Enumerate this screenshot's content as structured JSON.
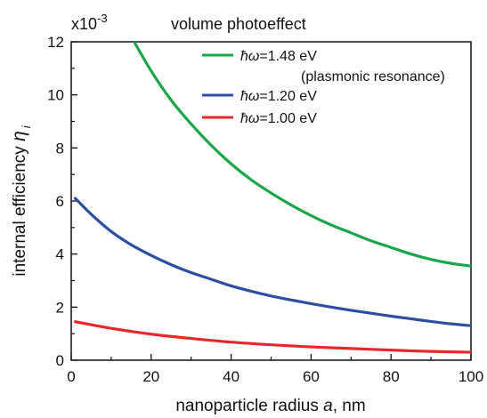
{
  "chart_data": {
    "type": "line",
    "title": "volume photoeffect",
    "xlabel_main": "nanoparticle radius ",
    "xlabel_var": "a",
    "xlabel_unit": ", nm",
    "ylabel_main": "internal efficiency ",
    "ylabel_var": "η",
    "ylabel_sub": "i",
    "y_multiplier_base": "x10",
    "y_multiplier_exp": "-3",
    "xlim": [
      0,
      100
    ],
    "ylim": [
      0,
      12
    ],
    "xticks": [
      "0",
      "20",
      "40",
      "60",
      "80",
      "100"
    ],
    "yticks": [
      "0",
      "2",
      "4",
      "6",
      "8",
      "10",
      "12"
    ],
    "x_tick_values": [
      0,
      20,
      40,
      60,
      80,
      100
    ],
    "y_tick_values": [
      0,
      2,
      4,
      6,
      8,
      10,
      12
    ],
    "legend_note": "(plasmonic resonance)",
    "series": [
      {
        "name": "ħω=1.48 eV",
        "legend_symbol": "ħω",
        "legend_value": "=1.48 eV",
        "color": "#1aa64a",
        "x": [
          15,
          20,
          25,
          30,
          35,
          40,
          45,
          50,
          55,
          60,
          65,
          70,
          75,
          80,
          85,
          90,
          95,
          100
        ],
        "y": [
          12.2,
          10.9,
          9.8,
          8.9,
          8.1,
          7.4,
          6.8,
          6.3,
          5.85,
          5.45,
          5.1,
          4.8,
          4.5,
          4.25,
          4.0,
          3.8,
          3.65,
          3.55
        ]
      },
      {
        "name": "ħω=1.20 eV",
        "legend_symbol": "ħω",
        "legend_value": "=1.20 eV",
        "color": "#2e4ea3",
        "x": [
          1,
          5,
          10,
          15,
          20,
          25,
          30,
          35,
          40,
          45,
          50,
          55,
          60,
          65,
          70,
          75,
          80,
          85,
          90,
          95,
          100
        ],
        "y": [
          6.1,
          5.5,
          4.85,
          4.35,
          3.95,
          3.6,
          3.3,
          3.05,
          2.8,
          2.6,
          2.42,
          2.27,
          2.13,
          2.0,
          1.88,
          1.77,
          1.66,
          1.56,
          1.46,
          1.37,
          1.3
        ]
      },
      {
        "name": "ħω=1.00 eV",
        "legend_symbol": "ħω",
        "legend_value": "=1.00 eV",
        "color": "#e5282d",
        "x": [
          1,
          10,
          20,
          30,
          40,
          50,
          60,
          70,
          80,
          90,
          100
        ],
        "y": [
          1.45,
          1.2,
          0.98,
          0.82,
          0.68,
          0.58,
          0.5,
          0.44,
          0.38,
          0.33,
          0.3
        ]
      }
    ]
  }
}
